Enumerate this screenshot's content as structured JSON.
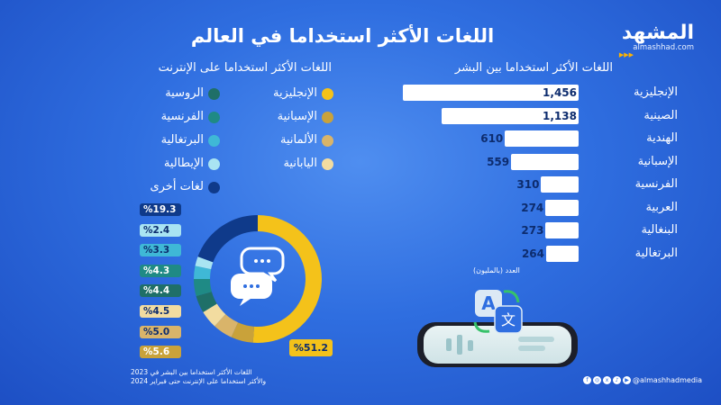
{
  "title": "اللغات الأكثر استخداما في العالم",
  "brand": {
    "name": "المشهد",
    "url": "almashhad.com"
  },
  "speakers": {
    "heading": "اللغات الأكثر استخداما بين البشر",
    "unit_note": "العدد (بالمليون)",
    "items": [
      {
        "label": "الإنجليزية",
        "value": 1456,
        "display": "1,456"
      },
      {
        "label": "الصينية",
        "value": 1138,
        "display": "1,138"
      },
      {
        "label": "الهندية",
        "value": 610,
        "display": "610"
      },
      {
        "label": "الإسبانية",
        "value": 559,
        "display": "559"
      },
      {
        "label": "الفرنسية",
        "value": 310,
        "display": "310"
      },
      {
        "label": "العربية",
        "value": 274,
        "display": "274"
      },
      {
        "label": "البنغالية",
        "value": 273,
        "display": "273"
      },
      {
        "label": "البرتغالية",
        "value": 264,
        "display": "264"
      }
    ]
  },
  "internet": {
    "heading": "اللغات الأكثر استخداما على الإنترنت",
    "legend_right": [
      {
        "label": "الإنجليزية",
        "color": "#f4c21a"
      },
      {
        "label": "الإسبانية",
        "color": "#c9a23a"
      },
      {
        "label": "الألمانية",
        "color": "#d9b46a"
      },
      {
        "label": "اليابانية",
        "color": "#f2dca0"
      }
    ],
    "legend_left": [
      {
        "label": "الروسية",
        "color": "#1f6f68"
      },
      {
        "label": "الفرنسية",
        "color": "#1f8a85"
      },
      {
        "label": "البرتغالية",
        "color": "#3fb8d6"
      },
      {
        "label": "الإيطالية",
        "color": "#a9e4f2"
      },
      {
        "label": "لغات أخرى",
        "color": "#0f3a8a"
      }
    ],
    "percents": [
      {
        "text": "%19.3",
        "bg": "#0f3a8a",
        "fg": "#ffffff"
      },
      {
        "text": "%2.4",
        "bg": "#a9e4f2",
        "fg": "#0d2c6e"
      },
      {
        "text": "%3.3",
        "bg": "#3fb8d6",
        "fg": "#0d2c6e"
      },
      {
        "text": "%4.3",
        "bg": "#1f8a85",
        "fg": "#ffffff"
      },
      {
        "text": "%4.4",
        "bg": "#1f6f68",
        "fg": "#ffffff"
      },
      {
        "text": "%4.5",
        "bg": "#f2dca0",
        "fg": "#0d2c6e"
      },
      {
        "text": "%5.0",
        "bg": "#d9b46a",
        "fg": "#0d2c6e"
      },
      {
        "text": "%5.6",
        "bg": "#c9a23a",
        "fg": "#ffffff"
      }
    ],
    "english_pct": "%51.2",
    "note_line1": "اللغات الأكثر استخداما بين البشر في 2023",
    "note_line2": "والأكثر استخداما على الإنترنت حتى فبراير 2024"
  },
  "footer": {
    "handle": "@almashhadmedia"
  },
  "chart_data": [
    {
      "type": "bar",
      "title": "اللغات الأكثر استخداما بين البشر",
      "categories": [
        "الإنجليزية",
        "الصينية",
        "الهندية",
        "الإسبانية",
        "الفرنسية",
        "العربية",
        "البنغالية",
        "البرتغالية"
      ],
      "values": [
        1456,
        1138,
        610,
        559,
        310,
        274,
        273,
        264
      ],
      "xlabel": "العدد (بالمليون)"
    },
    {
      "type": "pie",
      "title": "اللغات الأكثر استخداما على الإنترنت",
      "categories": [
        "الإنجليزية",
        "الإسبانية",
        "الألمانية",
        "اليابانية",
        "الروسية",
        "الفرنسية",
        "البرتغالية",
        "الإيطالية",
        "لغات أخرى"
      ],
      "values": [
        51.2,
        5.6,
        5.0,
        4.5,
        4.4,
        4.3,
        3.3,
        2.4,
        19.3
      ],
      "colors": [
        "#f4c21a",
        "#c9a23a",
        "#d9b46a",
        "#f2dca0",
        "#1f6f68",
        "#1f8a85",
        "#3fb8d6",
        "#a9e4f2",
        "#0f3a8a"
      ]
    }
  ]
}
